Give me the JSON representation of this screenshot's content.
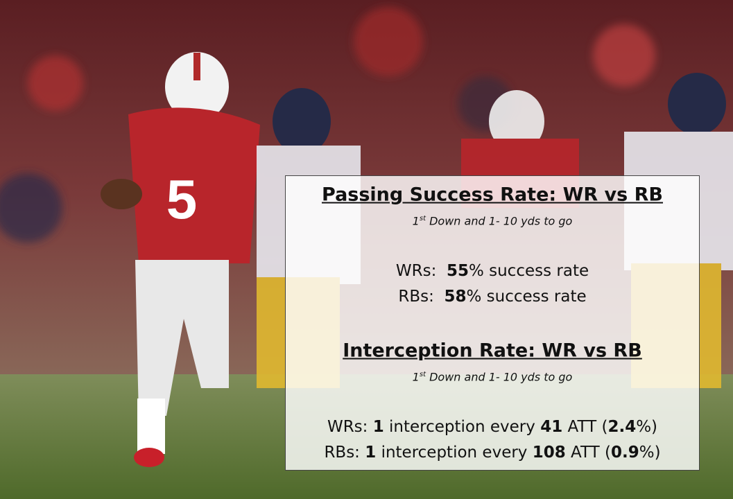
{
  "sections": [
    {
      "title": "Passing Success Rate: WR vs RB",
      "subtitle": {
        "number": "1",
        "sup": "st",
        "text": " Down and 1- 10 yds to go"
      },
      "lines": [
        [
          {
            "text": "WRs:  ",
            "bold": false
          },
          {
            "text": "55",
            "bold": true
          },
          {
            "text": "% success rate",
            "bold": false
          }
        ],
        [
          {
            "text": "RBs:  ",
            "bold": false
          },
          {
            "text": "58",
            "bold": true
          },
          {
            "text": "% success rate",
            "bold": false
          }
        ]
      ]
    },
    {
      "title": "Interception Rate: WR vs RB",
      "subtitle": {
        "number": "1",
        "sup": "st",
        "text": " Down and 1- 10 yds to go"
      },
      "lines": [
        [
          {
            "text": "WRs: ",
            "bold": false
          },
          {
            "text": "1",
            "bold": true
          },
          {
            "text": " interception every ",
            "bold": false
          },
          {
            "text": "41",
            "bold": true
          },
          {
            "text": " ATT (",
            "bold": false
          },
          {
            "text": "2.4",
            "bold": true
          },
          {
            "text": "%)",
            "bold": false
          }
        ],
        [
          {
            "text": "RBs: ",
            "bold": false
          },
          {
            "text": "1",
            "bold": true
          },
          {
            "text": " interception every ",
            "bold": false
          },
          {
            "text": "108",
            "bold": true
          },
          {
            "text": " ATT (",
            "bold": false
          },
          {
            "text": "0.9",
            "bold": true
          },
          {
            "text": "%)",
            "bold": false
          }
        ]
      ]
    }
  ]
}
